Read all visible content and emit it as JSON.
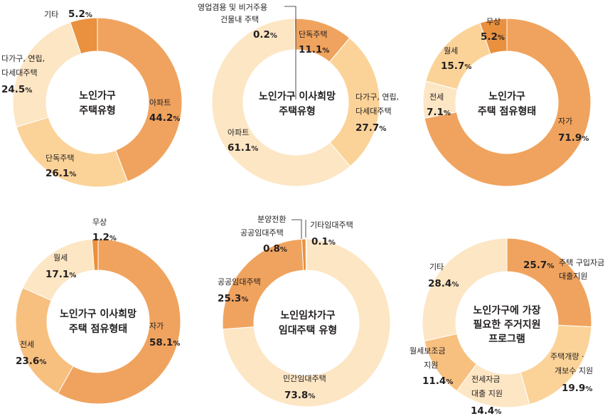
{
  "chart_data": [
    {
      "type": "pie",
      "donut": true,
      "title": "노인가구 주택유형",
      "slices": [
        {
          "label": "아파트",
          "value": 44.2
        },
        {
          "label": "단독주택",
          "value": 26.1
        },
        {
          "label": "다가구, 연립, 다세대주택",
          "value": 24.5
        },
        {
          "label": "기타",
          "value": 5.2
        }
      ]
    },
    {
      "type": "pie",
      "donut": true,
      "title": "노인가구 이사희망 주택유형",
      "slices": [
        {
          "label": "단독주택",
          "value": 11.1
        },
        {
          "label": "다가구, 연립, 다세대주택",
          "value": 27.7
        },
        {
          "label": "아파트",
          "value": 61.1
        },
        {
          "label": "영업겸용 및 비거주용 건물내 주택",
          "value": 0.2
        }
      ]
    },
    {
      "type": "pie",
      "donut": true,
      "title": "노인가구 주택 점유형태",
      "slices": [
        {
          "label": "자가",
          "value": 71.9
        },
        {
          "label": "전세",
          "value": 7.1
        },
        {
          "label": "월세",
          "value": 15.7
        },
        {
          "label": "무상",
          "value": 5.2
        }
      ]
    },
    {
      "type": "pie",
      "donut": true,
      "title": "노인가구 이사희망 주택 점유형태",
      "slices": [
        {
          "label": "자가",
          "value": 58.1
        },
        {
          "label": "전세",
          "value": 23.6
        },
        {
          "label": "월세",
          "value": 17.1
        },
        {
          "label": "무상",
          "value": 1.2
        }
      ]
    },
    {
      "type": "pie",
      "donut": true,
      "title": "노인임차가구 임대주택 유형",
      "slices": [
        {
          "label": "민간임대주택",
          "value": 73.8
        },
        {
          "label": "공공임대주택",
          "value": 25.3
        },
        {
          "label": "분양전환 공공임대주택",
          "value": 0.8
        },
        {
          "label": "기타임대주택",
          "value": 0.1
        }
      ]
    },
    {
      "type": "pie",
      "donut": true,
      "title": "노인가구에 가장 필요한 주거지원 프로그램",
      "slices": [
        {
          "label": "주택 구입자금 대출지원",
          "value": 25.7
        },
        {
          "label": "주택개량 · 개보수 지원",
          "value": 19.9
        },
        {
          "label": "전세자금 대출 지원",
          "value": 14.4
        },
        {
          "label": "월세보조금 지원",
          "value": 11.4
        },
        {
          "label": "기타",
          "value": 28.4
        }
      ]
    }
  ],
  "colors": {
    "c1": "#f0a35e",
    "c2": "#fbd398",
    "c3": "#f7c07f",
    "c4": "#fde6c4",
    "c5": "#e9913f",
    "c6": "#f5b672"
  }
}
